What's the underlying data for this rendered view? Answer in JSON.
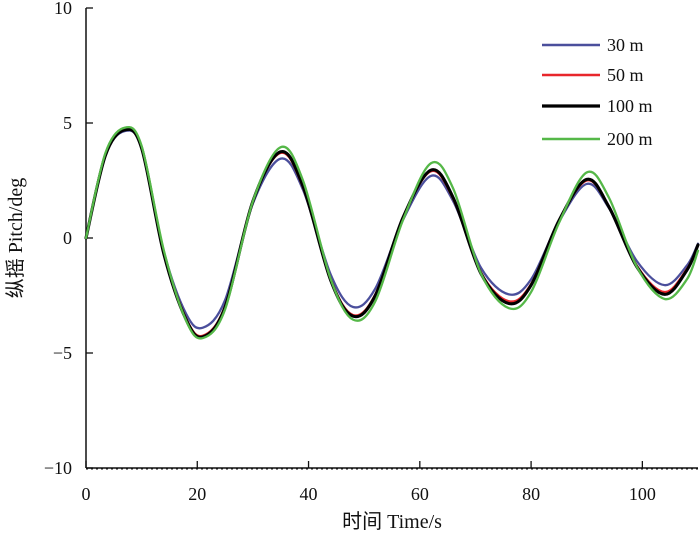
{
  "chart_data": {
    "type": "line",
    "title": "",
    "xlabel": "时间 Time/s",
    "ylabel": "纵摇 Pitch/deg",
    "xlim": [
      0,
      110
    ],
    "ylim": [
      -10,
      10
    ],
    "xticks": [
      0,
      20,
      40,
      60,
      80,
      100
    ],
    "yticks": [
      10,
      5,
      0,
      -5,
      -10
    ],
    "xtick_labels": [
      "0",
      "20",
      "40",
      "60",
      "80",
      "100"
    ],
    "ytick_labels": [
      "10",
      "5",
      "0",
      "−5",
      "−10"
    ],
    "grid": false,
    "legend_position": "top-right",
    "series": [
      {
        "name": "30 m",
        "color": "#4b4f9c",
        "points": [
          [
            0,
            0
          ],
          [
            3.5,
            3.6
          ],
          [
            7,
            4.65
          ],
          [
            10,
            3.9
          ],
          [
            14,
            -0.6
          ],
          [
            18,
            -3.3
          ],
          [
            21,
            -3.9
          ],
          [
            25,
            -2.7
          ],
          [
            30,
            1.5
          ],
          [
            35,
            3.45
          ],
          [
            39,
            2.1
          ],
          [
            44,
            -1.6
          ],
          [
            48,
            -3.0
          ],
          [
            52,
            -2.2
          ],
          [
            57,
            0.8
          ],
          [
            62,
            2.7
          ],
          [
            66,
            1.6
          ],
          [
            71,
            -1.3
          ],
          [
            76,
            -2.45
          ],
          [
            80,
            -1.8
          ],
          [
            85,
            0.7
          ],
          [
            90,
            2.35
          ],
          [
            94,
            1.3
          ],
          [
            99,
            -1.0
          ],
          [
            104,
            -2.05
          ],
          [
            108,
            -1.2
          ],
          [
            110,
            -0.25
          ]
        ]
      },
      {
        "name": "50 m",
        "color": "#e8262b",
        "points": [
          [
            0,
            0
          ],
          [
            3.5,
            3.65
          ],
          [
            7,
            4.7
          ],
          [
            10,
            3.95
          ],
          [
            14,
            -0.65
          ],
          [
            18,
            -3.5
          ],
          [
            21,
            -4.25
          ],
          [
            25,
            -2.95
          ],
          [
            30,
            1.6
          ],
          [
            35,
            3.7
          ],
          [
            39,
            2.2
          ],
          [
            44,
            -1.8
          ],
          [
            48,
            -3.35
          ],
          [
            52,
            -2.45
          ],
          [
            57,
            0.9
          ],
          [
            62,
            2.9
          ],
          [
            66,
            1.7
          ],
          [
            71,
            -1.5
          ],
          [
            76,
            -2.75
          ],
          [
            80,
            -2.0
          ],
          [
            85,
            0.75
          ],
          [
            90,
            2.5
          ],
          [
            94,
            1.35
          ],
          [
            99,
            -1.2
          ],
          [
            104,
            -2.35
          ],
          [
            108,
            -1.35
          ],
          [
            110,
            -0.3
          ]
        ]
      },
      {
        "name": "100 m",
        "color": "#000000",
        "points": [
          [
            0,
            0
          ],
          [
            3.5,
            3.6
          ],
          [
            7,
            4.7
          ],
          [
            10,
            3.9
          ],
          [
            14,
            -0.7
          ],
          [
            18,
            -3.55
          ],
          [
            21,
            -4.3
          ],
          [
            25,
            -3.0
          ],
          [
            30,
            1.6
          ],
          [
            35,
            3.75
          ],
          [
            39,
            2.25
          ],
          [
            44,
            -1.85
          ],
          [
            48,
            -3.4
          ],
          [
            52,
            -2.5
          ],
          [
            57,
            0.9
          ],
          [
            62,
            2.95
          ],
          [
            66,
            1.75
          ],
          [
            71,
            -1.55
          ],
          [
            76,
            -2.85
          ],
          [
            80,
            -2.05
          ],
          [
            85,
            0.75
          ],
          [
            90,
            2.55
          ],
          [
            94,
            1.35
          ],
          [
            99,
            -1.25
          ],
          [
            104,
            -2.45
          ],
          [
            108,
            -1.4
          ],
          [
            110,
            -0.3
          ]
        ]
      },
      {
        "name": "200 m",
        "color": "#55b848",
        "points": [
          [
            0,
            0
          ],
          [
            3.5,
            3.7
          ],
          [
            7,
            4.8
          ],
          [
            10,
            4.0
          ],
          [
            14,
            -0.55
          ],
          [
            18,
            -3.6
          ],
          [
            21,
            -4.35
          ],
          [
            25,
            -3.1
          ],
          [
            30,
            1.6
          ],
          [
            35,
            3.95
          ],
          [
            39,
            2.5
          ],
          [
            44,
            -1.8
          ],
          [
            48,
            -3.55
          ],
          [
            52,
            -2.75
          ],
          [
            57,
            0.8
          ],
          [
            62,
            3.25
          ],
          [
            66,
            2.15
          ],
          [
            71,
            -1.55
          ],
          [
            76,
            -3.05
          ],
          [
            80,
            -2.35
          ],
          [
            85,
            0.65
          ],
          [
            90,
            2.85
          ],
          [
            94,
            1.75
          ],
          [
            99,
            -1.25
          ],
          [
            104,
            -2.65
          ],
          [
            108,
            -1.8
          ],
          [
            110,
            -0.55
          ]
        ]
      }
    ]
  }
}
